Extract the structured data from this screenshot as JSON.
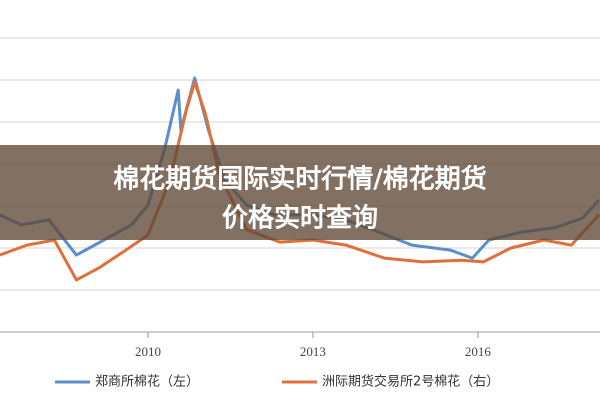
{
  "chart_data": {
    "type": "line",
    "title": [
      "棉花期货国际实时行情/棉花期货",
      "价格实时查询"
    ],
    "xlim": [
      2007.31,
      2018.22
    ],
    "xticks": [
      2010,
      2013,
      2016
    ],
    "ylim": [
      0,
      7
    ],
    "yticks": [
      0,
      1,
      2,
      3,
      4,
      5,
      6,
      7
    ],
    "grid": true,
    "legend": "bottom",
    "series": [
      {
        "name": "郑商所棉花（左）",
        "color": "#5b8fc9",
        "x": [
          2007.3,
          2007.7,
          2008.2,
          2008.7,
          2009.2,
          2009.7,
          2010.0,
          2010.3,
          2010.55,
          2010.6,
          2010.85,
          2011.1,
          2011.4,
          2011.8,
          2012.3,
          2013.0,
          2013.6,
          2014.2,
          2014.8,
          2015.5,
          2015.9,
          2016.2,
          2016.8,
          2017.4,
          2017.9,
          2018.2
        ],
        "values": [
          2.79,
          2.55,
          2.67,
          1.83,
          2.19,
          2.55,
          3.02,
          4.33,
          5.76,
          4.81,
          6.05,
          4.81,
          3.62,
          3.02,
          2.79,
          2.79,
          2.67,
          2.38,
          2.07,
          1.95,
          1.76,
          2.19,
          2.38,
          2.48,
          2.71,
          3.14
        ]
      },
      {
        "name": "洲际期货交易所2号棉花（右）",
        "color": "#e0703a",
        "x": [
          2007.3,
          2007.8,
          2008.3,
          2008.7,
          2009.1,
          2009.6,
          2010.0,
          2010.4,
          2010.7,
          2010.85,
          2011.05,
          2011.3,
          2011.8,
          2012.4,
          2013.0,
          2013.6,
          2014.3,
          2015.0,
          2015.7,
          2016.1,
          2016.6,
          2017.2,
          2017.7,
          2018.2
        ],
        "values": [
          1.83,
          2.07,
          2.19,
          1.24,
          1.52,
          1.95,
          2.31,
          3.62,
          5.29,
          5.95,
          5.17,
          3.74,
          2.43,
          2.14,
          2.19,
          2.07,
          1.76,
          1.67,
          1.71,
          1.67,
          2.0,
          2.19,
          2.07,
          2.79
        ]
      }
    ]
  }
}
